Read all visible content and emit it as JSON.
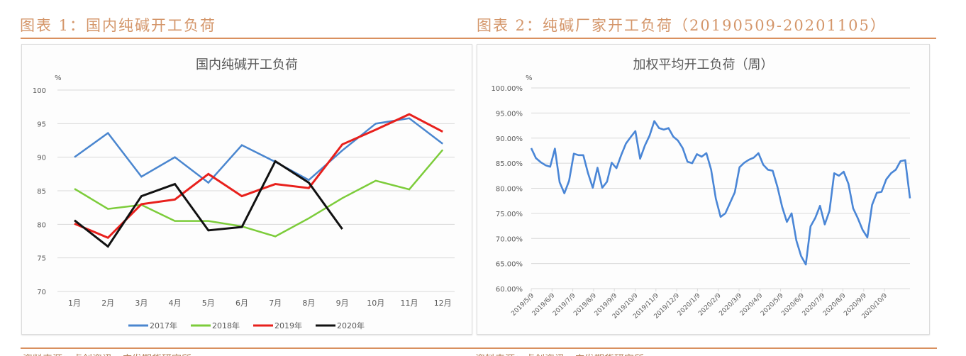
{
  "figure1": {
    "caption": "图表 1：国内纯碱开工负荷",
    "source": "资料来源：卓创资讯，广发期货研究所"
  },
  "figure2": {
    "caption": "图表 2：纯碱厂家开工负荷（20190509-20201105）",
    "source": "资料来源：卓创资讯，广发期货研究所"
  },
  "colors": {
    "caption": "#d4966a",
    "rule": "#d9905f",
    "series_2017": "#4a86cf",
    "series_2018": "#7ccc3a",
    "series_2019": "#e8201c",
    "series_2020": "#111111",
    "weekly": "#4a86d6",
    "grid": "#d9d9d9"
  },
  "chart_data": [
    {
      "type": "line",
      "title": "国内纯碱开工负荷",
      "ylabel": "%",
      "xlabel": "",
      "ylim": [
        70,
        100
      ],
      "yticks": [
        100,
        95,
        90,
        85,
        80,
        75,
        70
      ],
      "grid": true,
      "legend_position": "bottom",
      "categories": [
        "1月",
        "2月",
        "3月",
        "4月",
        "5月",
        "6月",
        "7月",
        "8月",
        "9月",
        "10月",
        "11月",
        "12月"
      ],
      "series": [
        {
          "name": "2017年",
          "color": "#4a86cf",
          "values": [
            90.0,
            93.6,
            87.1,
            90.0,
            86.2,
            91.8,
            89.3,
            86.6,
            91.0,
            95.0,
            95.8,
            92.0
          ]
        },
        {
          "name": "2018年",
          "color": "#7ccc3a",
          "values": [
            85.3,
            82.3,
            82.9,
            80.5,
            80.5,
            79.7,
            78.2,
            80.9,
            83.9,
            86.5,
            85.2,
            91.1
          ]
        },
        {
          "name": "2019年",
          "color": "#e8201c",
          "values": [
            80.1,
            78.0,
            83.0,
            83.7,
            87.5,
            84.2,
            86.0,
            85.4,
            91.9,
            94.1,
            96.4,
            93.8
          ]
        },
        {
          "name": "2020年",
          "color": "#111111",
          "values": [
            80.6,
            76.7,
            84.2,
            86.0,
            79.1,
            79.6,
            89.4,
            86.2,
            79.3,
            null,
            null,
            null
          ]
        }
      ]
    },
    {
      "type": "line",
      "title": "加权平均开工负荷（周）",
      "ylabel": "%",
      "xlabel": "",
      "ylim": [
        60,
        100
      ],
      "yticks": [
        "100.00%",
        "95.00%",
        "90.00%",
        "85.00%",
        "80.00%",
        "75.00%",
        "70.00%",
        "65.00%",
        "60.00%"
      ],
      "grid": true,
      "legend_position": "none",
      "x_tick_labels": [
        "2019/5/9",
        "2019/6/9",
        "2019/7/9",
        "2019/8/9",
        "2019/9/9",
        "2019/10/9",
        "2019/11/9",
        "2019/12/9",
        "2020/1/9",
        "2020/2/9",
        "2020/3/9",
        "2020/4/9",
        "2020/5/9",
        "2020/6/9",
        "2020/7/9",
        "2020/8/9",
        "2020/9/9",
        "2020/10/9"
      ],
      "x_range": [
        "2019/5/9",
        "2020/11/5"
      ],
      "series": [
        {
          "name": "加权平均开工负荷",
          "color": "#4a86d6",
          "values": [
            88.0,
            86.0,
            85.2,
            84.6,
            84.3,
            87.9,
            81.2,
            79.0,
            81.5,
            86.9,
            86.6,
            86.6,
            83.0,
            80.1,
            84.1,
            80.1,
            81.3,
            85.1,
            84.0,
            86.6,
            88.9,
            90.2,
            91.4,
            85.9,
            88.5,
            90.5,
            93.4,
            92.0,
            91.7,
            92.0,
            90.3,
            89.5,
            88.0,
            85.3,
            85.0,
            86.8,
            86.3,
            87.0,
            83.7,
            77.9,
            74.3,
            75.0,
            77.1,
            79.2,
            84.2,
            85.1,
            85.7,
            86.1,
            87.0,
            84.7,
            83.7,
            83.5,
            80.3,
            76.3,
            73.3,
            75.0,
            69.6,
            66.5,
            64.8,
            72.4,
            74.1,
            76.5,
            72.8,
            75.5,
            83.0,
            82.5,
            83.3,
            80.9,
            76.0,
            74.0,
            71.7,
            70.2,
            76.7,
            79.1,
            79.3,
            81.8,
            83.0,
            83.7,
            85.4,
            85.6,
            78.0
          ]
        }
      ]
    }
  ]
}
